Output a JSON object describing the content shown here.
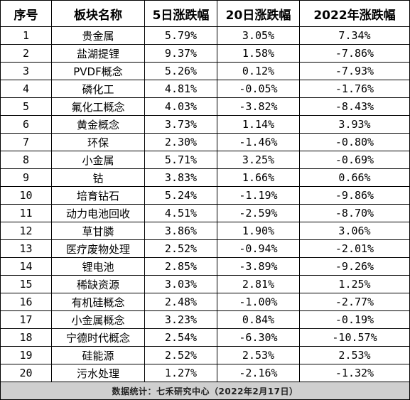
{
  "headers": [
    "序号",
    "板块名称",
    "5日涨跌幅",
    "20日涨跌幅",
    "2022年涨跌幅"
  ],
  "rows": [
    [
      "1",
      "贵金属",
      "5.79%",
      "3.05%",
      "7.34%"
    ],
    [
      "2",
      "盐湖提锂",
      "9.37%",
      "1.58%",
      "-7.86%"
    ],
    [
      "3",
      "PVDF概念",
      "5.26%",
      "0.12%",
      "-7.93%"
    ],
    [
      "4",
      "磷化工",
      "4.81%",
      "-0.05%",
      "-1.76%"
    ],
    [
      "5",
      "氟化工概念",
      "4.03%",
      "-3.82%",
      "-8.43%"
    ],
    [
      "6",
      "黄金概念",
      "3.73%",
      "1.14%",
      "3.93%"
    ],
    [
      "7",
      "环保",
      "2.30%",
      "-1.46%",
      "-0.80%"
    ],
    [
      "8",
      "小金属",
      "5.71%",
      "3.25%",
      "-0.69%"
    ],
    [
      "9",
      "钴",
      "3.83%",
      "1.66%",
      "0.66%"
    ],
    [
      "10",
      "培育钻石",
      "5.24%",
      "-1.19%",
      "-9.86%"
    ],
    [
      "11",
      "动力电池回收",
      "4.51%",
      "-2.59%",
      "-8.70%"
    ],
    [
      "12",
      "草甘膦",
      "3.86%",
      "1.90%",
      "3.06%"
    ],
    [
      "13",
      "医疗废物处理",
      "2.52%",
      "-0.94%",
      "-2.01%"
    ],
    [
      "14",
      "锂电池",
      "2.85%",
      "-3.89%",
      "-9.26%"
    ],
    [
      "15",
      "稀缺资源",
      "3.03%",
      "2.81%",
      "1.25%"
    ],
    [
      "16",
      "有机硅概念",
      "2.48%",
      "-1.00%",
      "-2.77%"
    ],
    [
      "17",
      "小金属概念",
      "3.23%",
      "0.84%",
      "-0.19%"
    ],
    [
      "18",
      "宁德时代概念",
      "2.54%",
      "-6.30%",
      "-10.57%"
    ],
    [
      "19",
      "硅能源",
      "2.52%",
      "2.53%",
      "2.53%"
    ],
    [
      "20",
      "污水处理",
      "1.27%",
      "-2.16%",
      "-1.32%"
    ]
  ],
  "footer": "数据统计：七禾研究中心（2022年2月17日）"
}
